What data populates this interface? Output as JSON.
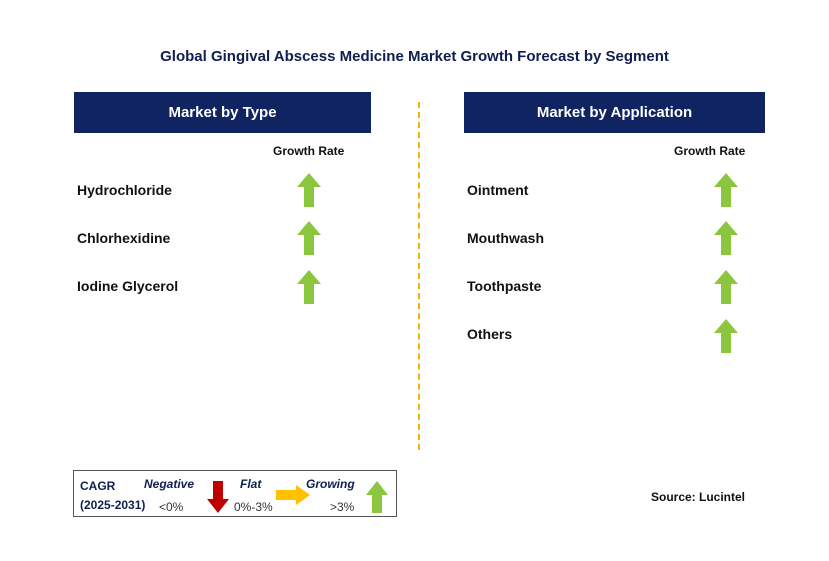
{
  "chart_data": {
    "type": "table",
    "title": "Global Gingival Abscess Medicine Market Growth Forecast by Segment",
    "panels": [
      {
        "header": "Market by Type",
        "column_label": "Growth Rate",
        "segments": [
          {
            "name": "Hydrochloride",
            "trend": "growing"
          },
          {
            "name": "Chlorhexidine",
            "trend": "growing"
          },
          {
            "name": "Iodine Glycerol",
            "trend": "growing"
          }
        ]
      },
      {
        "header": "Market by Application",
        "column_label": "Growth Rate",
        "segments": [
          {
            "name": "Ointment",
            "trend": "growing"
          },
          {
            "name": "Mouthwash",
            "trend": "growing"
          },
          {
            "name": "Toothpaste",
            "trend": "growing"
          },
          {
            "name": "Others",
            "trend": "growing"
          }
        ]
      }
    ],
    "legend": {
      "cagr_label": "CAGR",
      "period": "(2025-2031)",
      "negative": {
        "label": "Negative",
        "range": "<0%"
      },
      "flat": {
        "label": "Flat",
        "range": "0%-3%"
      },
      "growing": {
        "label": "Growing",
        "range": ">3%"
      }
    },
    "source": "Source: Lucintel"
  },
  "colors": {
    "header_bg": "#0f2461",
    "growing": "#8cc63f",
    "negative": "#c00000",
    "flat": "#ffc000",
    "divider": "#f5b400"
  }
}
